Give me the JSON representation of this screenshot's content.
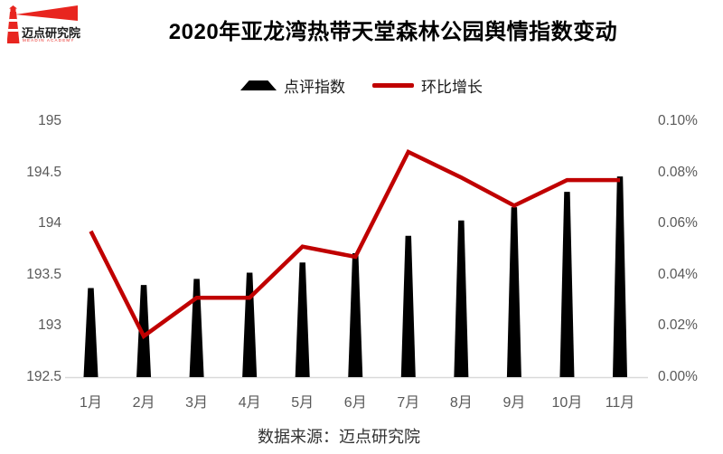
{
  "logo": {
    "text": "迈点研究院",
    "subtext": "MEADIN ACADEMY",
    "color": "#E8251F"
  },
  "title": "2020年亚龙湾热带天堂森林公园舆情指数变动",
  "legend": [
    {
      "label": "点评指数",
      "type": "bar",
      "color": "#000000"
    },
    {
      "label": "环比增长",
      "type": "line",
      "color": "#C00000"
    }
  ],
  "footer": "数据来源：迈点研究院",
  "chart_data": {
    "type": "bar+line",
    "title": "2020年亚龙湾热带天堂森林公园舆情指数变动",
    "source": "数据来源：迈点研究院",
    "categories": [
      "1月",
      "2月",
      "3月",
      "4月",
      "5月",
      "6月",
      "7月",
      "8月",
      "9月",
      "10月",
      "11月"
    ],
    "series": [
      {
        "name": "点评指数",
        "type": "bar",
        "axis": "left",
        "color": "#000000",
        "values": [
          193.37,
          193.4,
          193.46,
          193.52,
          193.62,
          193.71,
          193.88,
          194.03,
          194.16,
          194.31,
          194.46
        ]
      },
      {
        "name": "环比增长",
        "type": "line",
        "axis": "right",
        "color": "#C00000",
        "unit": "%",
        "values": [
          0.057,
          0.016,
          0.031,
          0.031,
          0.051,
          0.047,
          0.088,
          0.078,
          0.067,
          0.077,
          0.077
        ]
      }
    ],
    "left_axis": {
      "ticks": [
        "195",
        "194.5",
        "194",
        "193.5",
        "193",
        "192.5"
      ],
      "min": 192.5,
      "max": 195
    },
    "right_axis": {
      "ticks": [
        "0.10%",
        "0.08%",
        "0.06%",
        "0.04%",
        "0.02%",
        "0.00%"
      ],
      "min": 0,
      "max": 0.1
    },
    "grid": false,
    "legend_position": "top"
  }
}
